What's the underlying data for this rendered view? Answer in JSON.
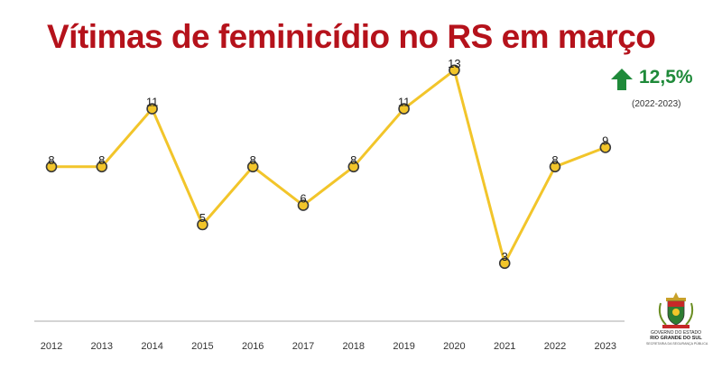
{
  "title": "Vítimas de feminicídio no RS em março",
  "growth": {
    "arrow_icon": "arrow-up-icon",
    "value": "12,5%",
    "period": "(2022-2023)",
    "color": "#1f8a3a"
  },
  "logo": {
    "line1": "GOVERNO DO ESTADO",
    "line2": "RIO GRANDE DO SUL",
    "line3": "SECRETARIA DA SEGURANÇA PÚBLICA"
  },
  "colors": {
    "title": "#b5121b",
    "line": "#f2c52a",
    "marker_fill": "#f2c52a",
    "marker_stroke": "#3a3a3a",
    "axis": "#bbbbbb"
  },
  "chart_data": {
    "type": "line",
    "title": "Vítimas de feminicídio no RS em março",
    "xlabel": "",
    "ylabel": "",
    "categories": [
      "2012",
      "2013",
      "2014",
      "2015",
      "2016",
      "2017",
      "2018",
      "2019",
      "2020",
      "2021",
      "2022",
      "2023"
    ],
    "values": [
      8,
      8,
      11,
      5,
      8,
      6,
      8,
      11,
      13,
      3,
      8,
      9
    ],
    "ylim": [
      0,
      14
    ],
    "grid": false,
    "legend": "none"
  }
}
